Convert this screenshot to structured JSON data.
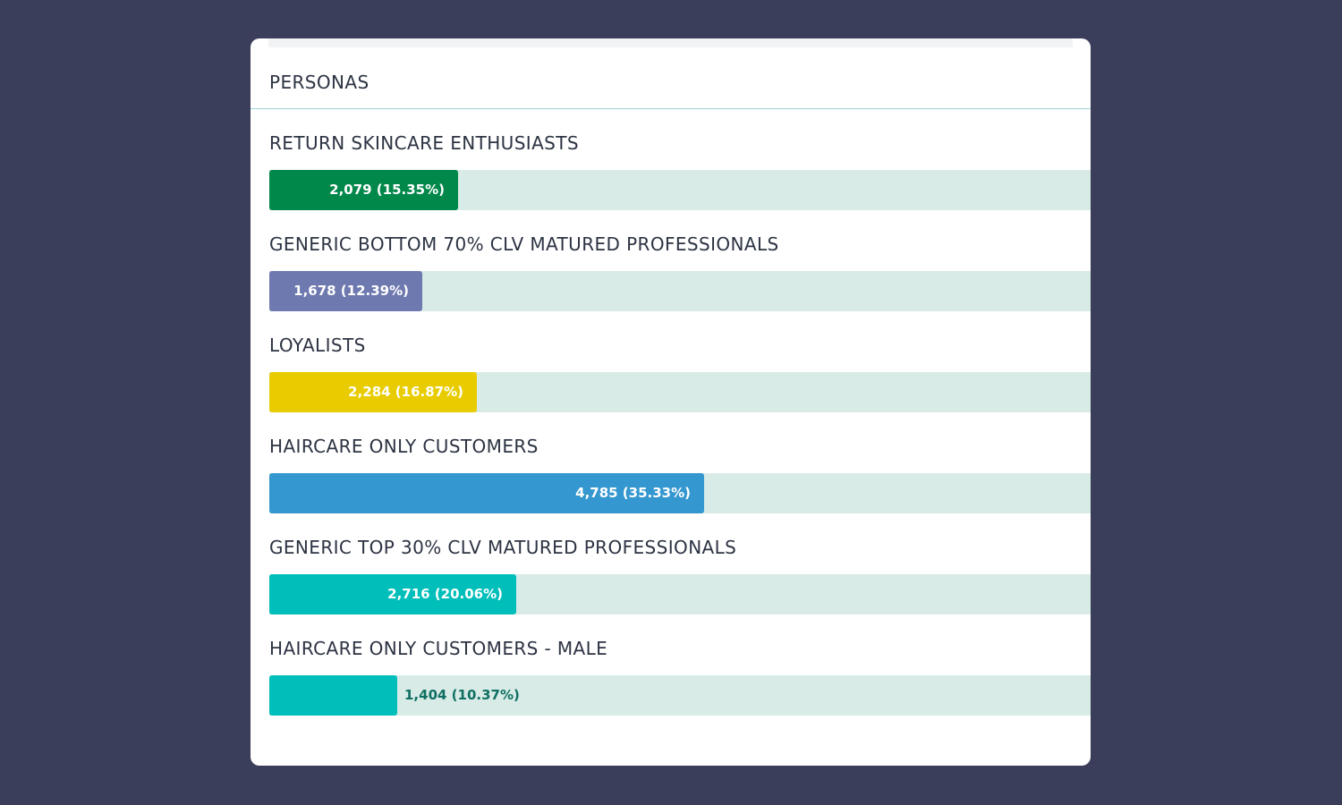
{
  "panel": {
    "title": "PERSONAS"
  },
  "chart_data": {
    "type": "bar",
    "orientation": "horizontal",
    "title": "PERSONAS",
    "categories": [
      "RETURN SKINCARE ENTHUSIASTS",
      "GENERIC BOTTOM 70% CLV MATURED PROFESSIONALS",
      "LOYALISTS",
      "HAIRCARE ONLY CUSTOMERS",
      "GENERIC TOP 30% CLV MATURED PROFESSIONALS",
      "HAIRCARE ONLY CUSTOMERS - MALE"
    ],
    "values": [
      2079,
      1678,
      2284,
      4785,
      2716,
      1404
    ],
    "percentages": [
      15.35,
      12.39,
      16.87,
      35.33,
      20.06,
      10.37
    ],
    "value_labels": [
      "2,079 (15.35%)",
      "1,678 (12.39%)",
      "2,284 (16.87%)",
      "4,785 (35.33%)",
      "2,716 (20.06%)",
      "1,404 (10.37%)"
    ],
    "colors": [
      "#00884a",
      "#6e79af",
      "#e8cc00",
      "#3497cf",
      "#00bfba",
      "#00bfba"
    ],
    "track_color": "#d8ebe7",
    "grid": false,
    "legend": "none"
  }
}
